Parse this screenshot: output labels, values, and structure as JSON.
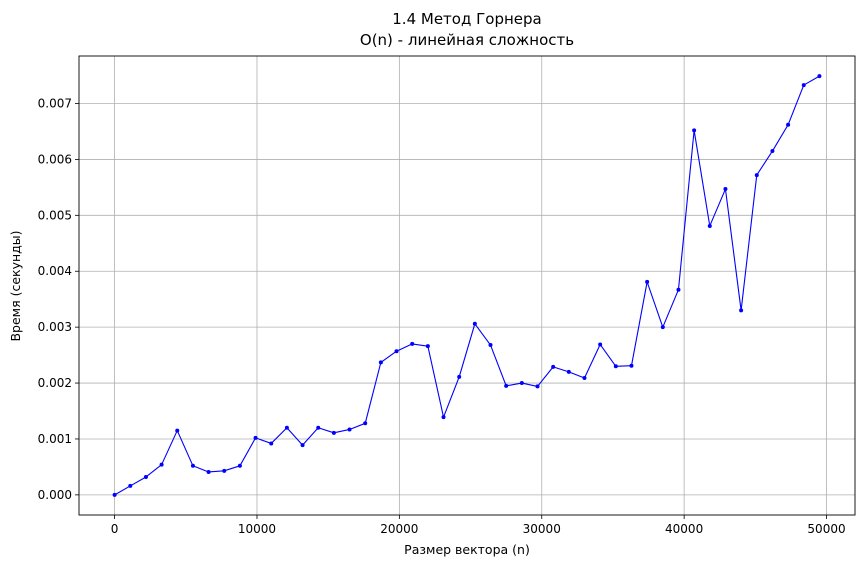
{
  "chart_data": {
    "type": "line",
    "title": "1.4 Метод Горнера",
    "subtitle": "O(n) - линейная сложность",
    "xlabel": "Размер вектора (n)",
    "ylabel": "Время (секунды)",
    "xlim": [
      -2500,
      52000
    ],
    "ylim": [
      -0.00036,
      0.00785
    ],
    "xticks": [
      0,
      10000,
      20000,
      30000,
      40000,
      50000
    ],
    "xtick_labels": [
      "0",
      "10000",
      "20000",
      "30000",
      "40000",
      "50000"
    ],
    "yticks": [
      0,
      0.001,
      0.002,
      0.003,
      0.004,
      0.005,
      0.006,
      0.007
    ],
    "ytick_labels": [
      "0.000",
      "0.001",
      "0.002",
      "0.003",
      "0.004",
      "0.005",
      "0.006",
      "0.007"
    ],
    "grid": true,
    "series": [
      {
        "color": "#0000ff",
        "marker": "circle",
        "x": [
          1,
          1101,
          2201,
          3301,
          4401,
          5501,
          6601,
          7701,
          8801,
          9901,
          11001,
          12101,
          13201,
          14301,
          15401,
          16501,
          17601,
          18701,
          19801,
          20901,
          22001,
          23101,
          24201,
          25301,
          26401,
          27501,
          28601,
          29701,
          30801,
          31901,
          33001,
          34101,
          35201,
          36301,
          37401,
          38501,
          39601,
          40701,
          41801,
          42901,
          44001,
          45101,
          46201,
          47301,
          48401,
          49501
        ],
        "y": [
          0.0,
          0.00016,
          0.00032,
          0.00054,
          0.00115,
          0.00052,
          0.00041,
          0.00043,
          0.00052,
          0.00102,
          0.00092,
          0.0012,
          0.00089,
          0.0012,
          0.00111,
          0.00117,
          0.00128,
          0.00237,
          0.00257,
          0.0027,
          0.00266,
          0.00139,
          0.00211,
          0.00306,
          0.00268,
          0.00195,
          0.002,
          0.00194,
          0.00229,
          0.0022,
          0.00209,
          0.00269,
          0.0023,
          0.00231,
          0.00381,
          0.003,
          0.00367,
          0.00652,
          0.00481,
          0.00547,
          0.0033,
          0.00572,
          0.00615,
          0.00662,
          0.00733,
          0.00749
        ]
      }
    ]
  }
}
